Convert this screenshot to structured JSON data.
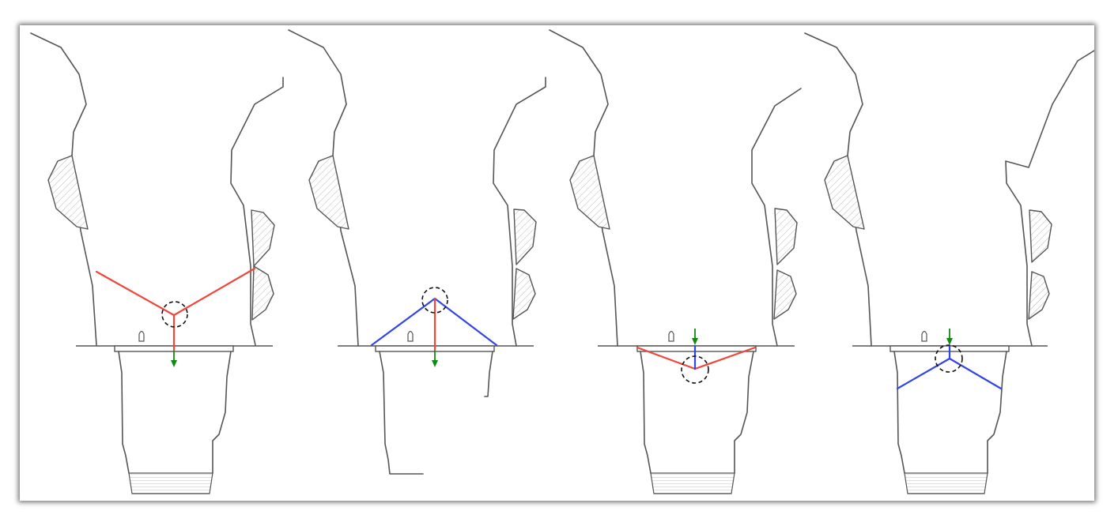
{
  "figure": {
    "panel_count": 4,
    "colors": {
      "red_member": "#f0463c",
      "blue_member": "#3345e6",
      "load_arrow": "#118a11",
      "node_marker": "#111111",
      "outline": "#555555",
      "background": "#ffffff"
    },
    "panels": [
      {
        "name": "panel-1",
        "members": [
          "red-left",
          "red-right",
          "red-vertical"
        ],
        "load_arrow": "down",
        "node_marker": "dashed-circle"
      },
      {
        "name": "panel-2",
        "members": [
          "blue-left",
          "blue-right",
          "red-vertical"
        ],
        "load_arrow": "down",
        "node_marker": "dashed-circle"
      },
      {
        "name": "panel-3",
        "members": [
          "red-left",
          "red-right",
          "blue-vertical"
        ],
        "load_arrow": "down",
        "node_marker": "dashed-circle"
      },
      {
        "name": "panel-4",
        "members": [
          "blue-left",
          "blue-right",
          "blue-vertical"
        ],
        "load_arrow": "down",
        "node_marker": "dashed-circle"
      }
    ]
  }
}
